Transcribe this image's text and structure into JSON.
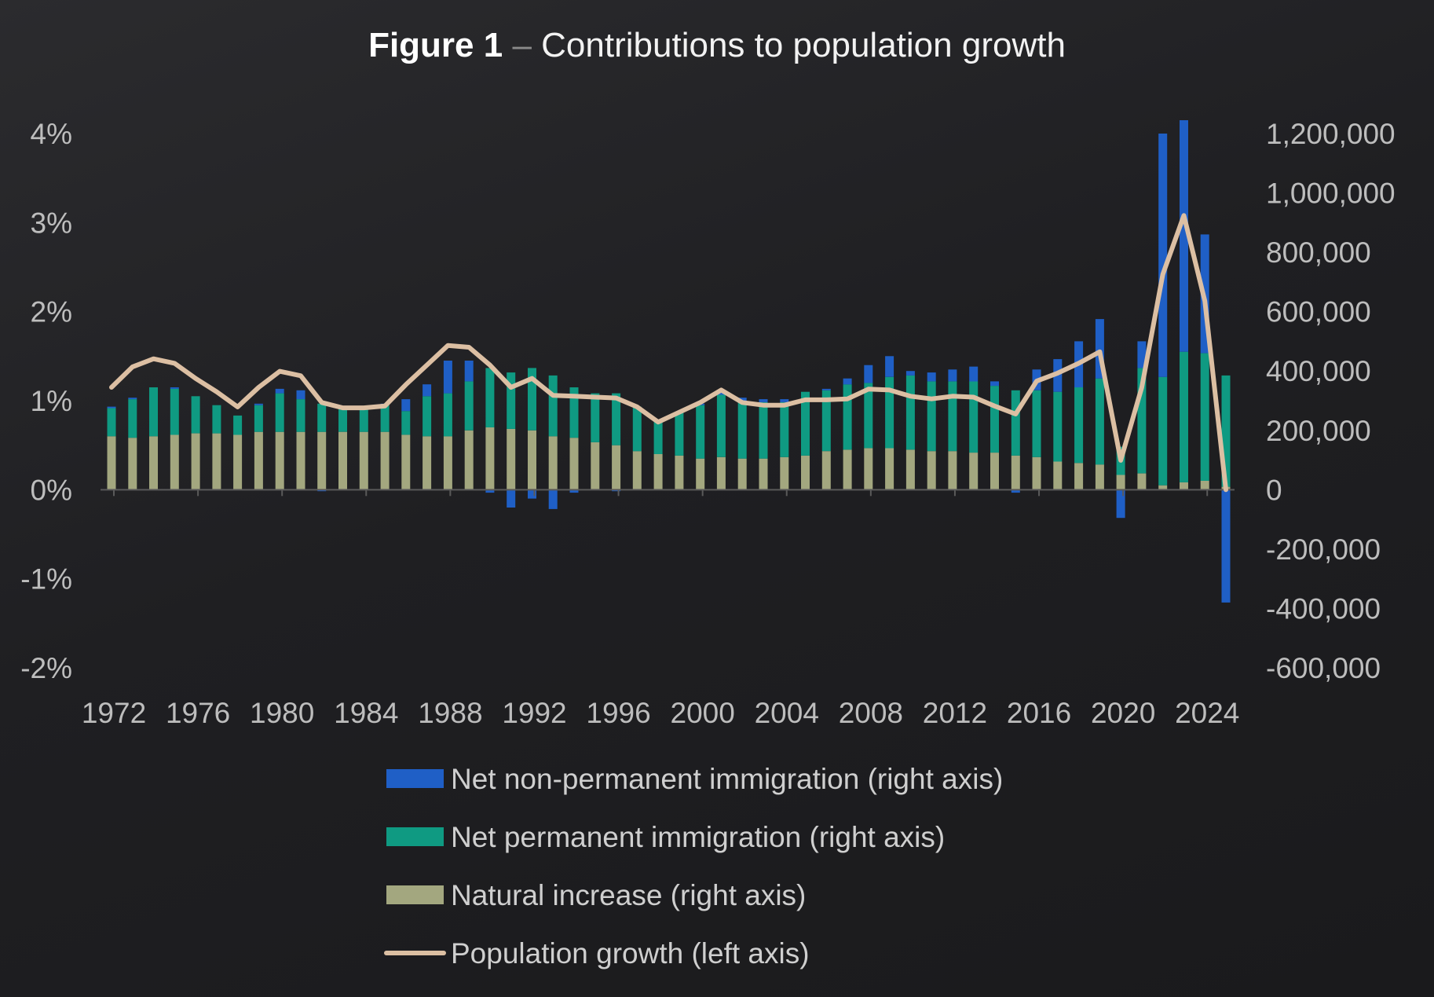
{
  "title": {
    "strong": "Figure 1",
    "separator": " – ",
    "text": "Contributions to population growth"
  },
  "colors": {
    "non_permanent": "#1f5fc6",
    "permanent": "#0f9a82",
    "natural": "#a3a77f",
    "growth": "#dcbfa3",
    "axis": "#5a5a5a"
  },
  "chart_data": {
    "type": "bar",
    "stacked": true,
    "title": "Figure 1 – Contributions to population growth",
    "x": [
      1972,
      1973,
      1974,
      1975,
      1976,
      1977,
      1978,
      1979,
      1980,
      1981,
      1982,
      1983,
      1984,
      1985,
      1986,
      1987,
      1988,
      1989,
      1990,
      1991,
      1992,
      1993,
      1994,
      1995,
      1996,
      1997,
      1998,
      1999,
      2000,
      2001,
      2002,
      2003,
      2004,
      2005,
      2006,
      2007,
      2008,
      2009,
      2010,
      2011,
      2012,
      2013,
      2014,
      2015,
      2016,
      2017,
      2018,
      2019,
      2020,
      2021,
      2022,
      2023,
      2024,
      2025
    ],
    "x_tick_labels": [
      "1972",
      "1976",
      "1980",
      "1984",
      "1988",
      "1992",
      "1996",
      "2000",
      "2004",
      "2008",
      "2012",
      "2016",
      "2020",
      "2024"
    ],
    "left_axis": {
      "label": "Population growth (left axis)",
      "ylim": [
        -2,
        4
      ],
      "ticks": [
        "4%",
        "3%",
        "2%",
        "1%",
        "0%",
        "-1%",
        "-2%"
      ]
    },
    "right_axis": {
      "ylim": [
        -600000,
        1200000
      ],
      "ticks": [
        "1,200,000",
        "1,000,000",
        "800,000",
        "600,000",
        "400,000",
        "200,000",
        "0",
        "-200,000",
        "-400,000",
        "-600,000"
      ]
    },
    "series": [
      {
        "name": "Net non-permanent immigration (right axis)",
        "axis": "right",
        "kind": "bar",
        "values": [
          5000,
          5000,
          0,
          5000,
          0,
          0,
          0,
          5000,
          15000,
          30000,
          -5000,
          0,
          0,
          5000,
          40000,
          40000,
          110000,
          70000,
          -10000,
          -60000,
          -30000,
          -65000,
          -10000,
          0,
          -5000,
          0,
          0,
          0,
          5000,
          10000,
          10000,
          10000,
          10000,
          0,
          5000,
          20000,
          60000,
          70000,
          15000,
          30000,
          40000,
          50000,
          15000,
          -10000,
          70000,
          110000,
          155000,
          200000,
          -95000,
          90000,
          820000,
          780000,
          400000,
          -380000
        ]
      },
      {
        "name": "Net permanent immigration (right axis)",
        "axis": "right",
        "kind": "bar",
        "values": [
          95000,
          130000,
          165000,
          155000,
          125000,
          95000,
          65000,
          90000,
          130000,
          110000,
          95000,
          80000,
          85000,
          90000,
          80000,
          135000,
          145000,
          165000,
          200000,
          190000,
          210000,
          205000,
          170000,
          165000,
          175000,
          150000,
          110000,
          145000,
          180000,
          210000,
          195000,
          190000,
          185000,
          215000,
          205000,
          220000,
          220000,
          240000,
          250000,
          235000,
          235000,
          240000,
          225000,
          220000,
          225000,
          235000,
          255000,
          290000,
          95000,
          355000,
          365000,
          440000,
          430000,
          375000
        ]
      },
      {
        "name": "Natural increase (right axis)",
        "axis": "right",
        "kind": "bar",
        "values": [
          180000,
          175000,
          180000,
          185000,
          190000,
          190000,
          185000,
          195000,
          195000,
          195000,
          195000,
          195000,
          195000,
          195000,
          185000,
          180000,
          180000,
          200000,
          210000,
          205000,
          200000,
          180000,
          175000,
          160000,
          150000,
          130000,
          120000,
          115000,
          105000,
          110000,
          105000,
          105000,
          110000,
          115000,
          130000,
          135000,
          140000,
          140000,
          135000,
          130000,
          130000,
          125000,
          125000,
          115000,
          110000,
          95000,
          90000,
          85000,
          50000,
          55000,
          15000,
          25000,
          30000,
          10000
        ]
      },
      {
        "name": "Population growth (left axis)",
        "axis": "left",
        "kind": "line",
        "values": [
          1.15,
          1.38,
          1.47,
          1.42,
          1.25,
          1.1,
          0.93,
          1.15,
          1.33,
          1.28,
          0.98,
          0.92,
          0.92,
          0.94,
          1.18,
          1.4,
          1.62,
          1.6,
          1.4,
          1.15,
          1.25,
          1.06,
          1.05,
          1.04,
          1.03,
          0.93,
          0.76,
          0.87,
          0.98,
          1.12,
          0.98,
          0.95,
          0.95,
          1.01,
          1.01,
          1.02,
          1.13,
          1.12,
          1.05,
          1.02,
          1.05,
          1.04,
          0.94,
          0.85,
          1.22,
          1.31,
          1.42,
          1.55,
          0.33,
          1.15,
          2.42,
          3.08,
          2.12,
          0.0
        ]
      }
    ],
    "legend": [
      {
        "label": "Net non-permanent immigration (right axis)",
        "kind": "bar"
      },
      {
        "label": "Net permanent immigration (right axis)",
        "kind": "bar"
      },
      {
        "label": "Natural increase (right axis)",
        "kind": "bar"
      },
      {
        "label": "Population growth (left axis)",
        "kind": "line"
      }
    ],
    "legend_position": "bottom-center"
  }
}
